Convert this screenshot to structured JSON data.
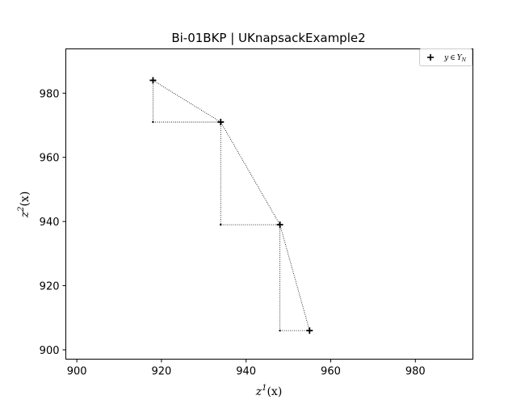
{
  "chart_data": {
    "type": "scatter",
    "title": "Bi-01BKP | UKnapsackExample2",
    "xlabel_base": "z",
    "xlabel_sup": "1",
    "xlabel_tail": "(x)",
    "ylabel_base": "z",
    "ylabel_sup": "2",
    "ylabel_tail": "(x)",
    "xlim": [
      897.4,
      993.6
    ],
    "ylim": [
      897.1,
      993.8
    ],
    "xticks": [
      900,
      920,
      940,
      960,
      980
    ],
    "yticks": [
      900,
      920,
      940,
      960,
      980
    ],
    "grid": false,
    "legend_placement": "top-right",
    "series": [
      {
        "name": "y ∈ Y_N",
        "marker": "plus",
        "color": "#000000",
        "x": [
          918,
          934,
          948,
          955
        ],
        "y": [
          984,
          971,
          939,
          906
        ]
      }
    ],
    "connector_line": {
      "style": "dotted",
      "x": [
        918,
        934,
        948,
        955
      ],
      "y": [
        984,
        971,
        939,
        906
      ]
    },
    "staircase_corners": {
      "marker": "dot",
      "x": [
        918,
        934,
        948
      ],
      "y": [
        971,
        939,
        906
      ]
    }
  },
  "legend": {
    "label_y": "y",
    "label_in": "∈",
    "label_Y": "Y",
    "label_sub": "N"
  }
}
